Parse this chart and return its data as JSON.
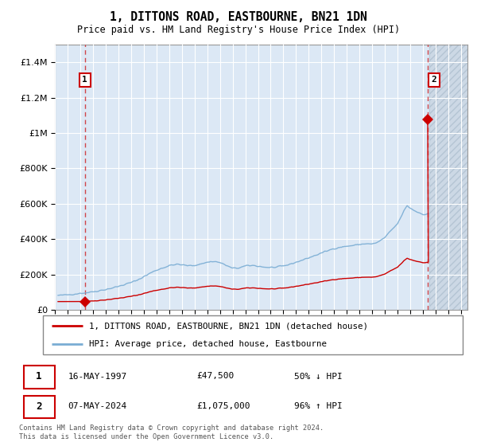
{
  "title": "1, DITTONS ROAD, EASTBOURNE, BN21 1DN",
  "subtitle": "Price paid vs. HM Land Registry's House Price Index (HPI)",
  "footnote": "Contains HM Land Registry data © Crown copyright and database right 2024.\nThis data is licensed under the Open Government Licence v3.0.",
  "legend_line1": "1, DITTONS ROAD, EASTBOURNE, BN21 1DN (detached house)",
  "legend_line2": "HPI: Average price, detached house, Eastbourne",
  "transaction1_date": "16-MAY-1997",
  "transaction1_price": "£47,500",
  "transaction1_hpi": "50% ↓ HPI",
  "transaction2_date": "07-MAY-2024",
  "transaction2_price": "£1,075,000",
  "transaction2_hpi": "96% ↑ HPI",
  "bg_color": "#dce8f5",
  "hatch_bg_color": "#ccd8e5",
  "red_line_color": "#cc0000",
  "blue_line_color": "#7aadd4",
  "vline_color": "#cc0000",
  "marker_color": "#cc0000",
  "ylim": [
    0,
    1500000
  ],
  "xlim_start": 1995.25,
  "xlim_end": 2027.5,
  "hatch_start": 2024.5,
  "transaction1_x": 1997.37,
  "transaction2_x": 2024.37,
  "transaction1_y": 47500,
  "transaction2_y": 1075000,
  "hpi_base_year": 1997.37,
  "hpi_base_price": 47500,
  "hpi_ratio": 0.5
}
